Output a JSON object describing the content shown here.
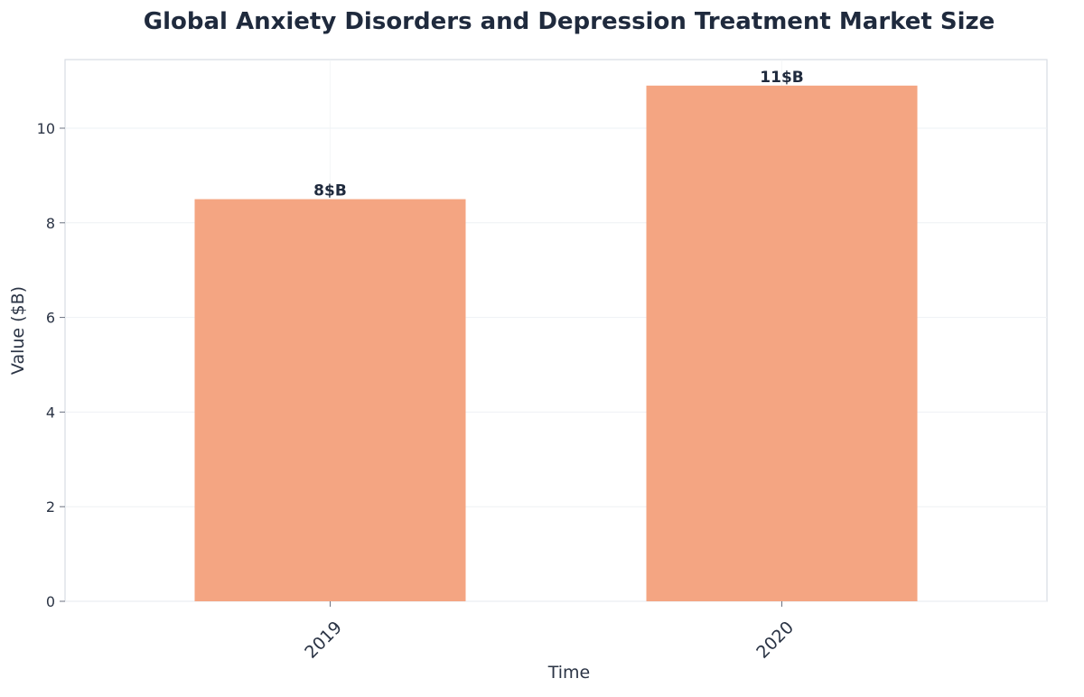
{
  "chart_data": {
    "type": "bar",
    "title": "Global Anxiety Disorders and Depression Treatment Market Size",
    "xlabel": "Time",
    "ylabel": "Value ($B)",
    "categories": [
      "2019",
      "2020"
    ],
    "values": [
      8.5,
      10.9
    ],
    "data_labels": [
      "8$B",
      "11$B"
    ],
    "ylim": [
      0,
      11.45
    ],
    "yticks": [
      0,
      2,
      4,
      6,
      8,
      10
    ],
    "grid": true,
    "bar_color": "#f4a582",
    "text_color": "#1f2a3d",
    "legend": "none"
  }
}
